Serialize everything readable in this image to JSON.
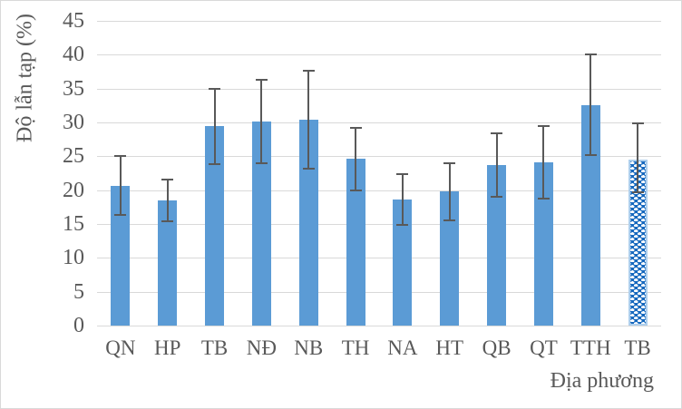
{
  "chart_data": {
    "type": "bar",
    "title": "",
    "ylabel": "Độ lẫn tạp (%)",
    "xlabel": "Địa phương",
    "categories": [
      "QN",
      "HP",
      "TB",
      "NĐ",
      "NB",
      "TH",
      "NA",
      "HT",
      "QB",
      "QT",
      "TTH",
      "TB"
    ],
    "series": [
      {
        "name": "Độ lẫn tạp (%)",
        "values": [
          20.6,
          18.5,
          29.4,
          30.2,
          30.4,
          24.6,
          18.6,
          19.8,
          23.7,
          24.1,
          32.6,
          24.5
        ],
        "error_low": [
          16.3,
          15.4,
          23.8,
          24.0,
          23.2,
          19.9,
          14.8,
          15.6,
          19.0,
          18.8,
          25.2,
          19.7
        ],
        "error_high": [
          25.1,
          21.6,
          35.0,
          36.3,
          37.7,
          29.2,
          22.4,
          24.0,
          28.4,
          29.4,
          40.0,
          29.9
        ]
      }
    ],
    "ylim": [
      0,
      45
    ],
    "yticks": [
      0,
      5,
      10,
      15,
      20,
      25,
      30,
      35,
      40,
      45
    ],
    "grid": "horizontal",
    "legend": "none",
    "pattern_bar_index": 11,
    "pattern_bar_style": "blue dotted pattern fill with light blue outline"
  },
  "colors": {
    "bar_fill": "#5B9BD5",
    "pattern_fill": "#1668BE",
    "pattern_dot": "#FFFFFF",
    "pattern_border": "#AECFED",
    "error_bar": "#595959",
    "gridline": "#D9D9D9",
    "axis_text": "#595959",
    "background": "#FFFFFF",
    "frame_border": "#D9D9D9"
  }
}
